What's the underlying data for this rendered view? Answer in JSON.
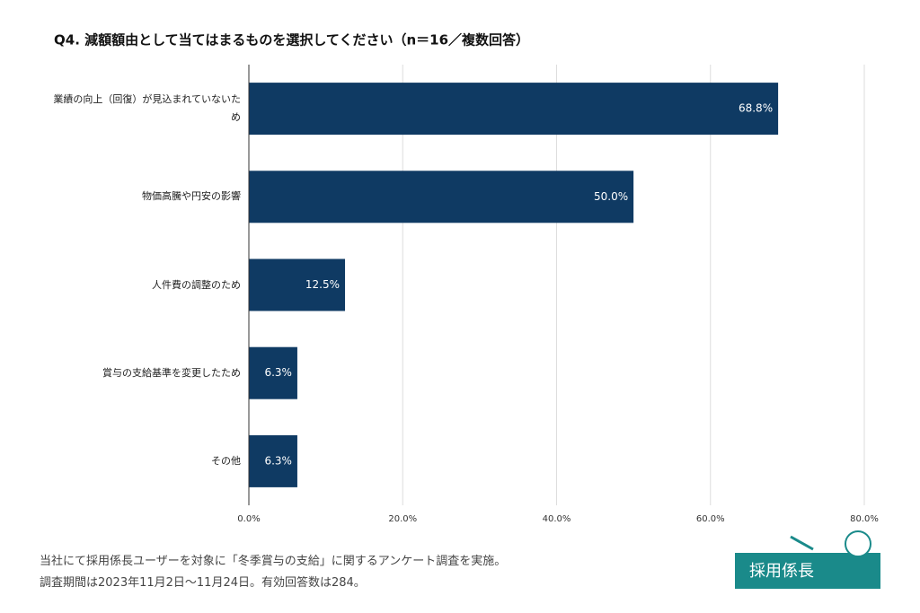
{
  "chart_data": {
    "type": "bar",
    "orientation": "horizontal",
    "title": "Q4. 減額額由として当てはまるものを選択してください（n＝16／複数回答）",
    "categories": [
      "業績の向上（回復）が見込まれていないため",
      "物価高騰や円安の影響",
      "人件費の調整のため",
      "賞与の支給基準を変更したため",
      "その他"
    ],
    "values": [
      68.8,
      50.0,
      12.5,
      6.3,
      6.3
    ],
    "value_labels": [
      "68.8%",
      "50.0%",
      "12.5%",
      "6.3%",
      "6.3%"
    ],
    "color": "#0f3a63",
    "xlim": [
      0,
      80
    ],
    "xticks": [
      {
        "value": 0,
        "label": "0.0%"
      },
      {
        "value": 20,
        "label": "20.0%"
      },
      {
        "value": 40,
        "label": "40.0%"
      },
      {
        "value": 60,
        "label": "60.0%"
      },
      {
        "value": 80,
        "label": "80.0%"
      }
    ],
    "grid": true
  },
  "footnote": [
    "当社にて採用係長ユーザーを対象に「冬季賞与の支給」に関するアンケート調査を実施。",
    "調査期間は2023年11月2日〜11月24日。有効回答数は284。"
  ],
  "logo": "採用係長"
}
